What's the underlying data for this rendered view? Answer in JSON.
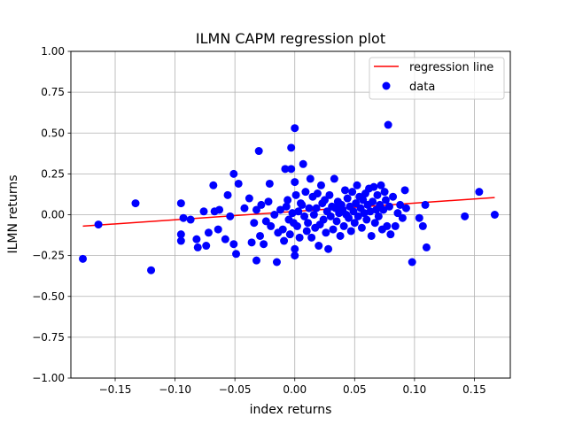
{
  "chart_data": {
    "type": "scatter",
    "title": "ILMN CAPM regression plot",
    "xlabel": "index returns",
    "ylabel": "ILMN returns",
    "xlim": [
      -0.187,
      0.18
    ],
    "ylim": [
      -1.0,
      1.0
    ],
    "grid": true,
    "legend_position": "top-right",
    "xticks": [
      -0.15,
      -0.1,
      -0.05,
      0.0,
      0.05,
      0.1,
      0.15
    ],
    "xtick_labels": [
      "−0.15",
      "−0.10",
      "−0.05",
      "0.00",
      "0.05",
      "0.10",
      "0.15"
    ],
    "yticks": [
      -1.0,
      -0.75,
      -0.5,
      -0.25,
      0.0,
      0.25,
      0.5,
      0.75,
      1.0
    ],
    "ytick_labels": [
      "−1.00",
      "−0.75",
      "−0.50",
      "−0.25",
      "0.00",
      "0.25",
      "0.50",
      "0.75",
      "1.00"
    ],
    "colors": {
      "data": "#0000ff",
      "regression": "#ff0000",
      "grid": "#b0b0b0"
    },
    "legend": [
      {
        "label": "regression line",
        "kind": "line",
        "color": "#ff0000"
      },
      {
        "label": "data",
        "kind": "marker",
        "color": "#0000ff"
      }
    ],
    "regression_line": {
      "x": [
        -0.177,
        0.167
      ],
      "y": [
        -0.07,
        0.105
      ]
    },
    "series": [
      {
        "name": "data",
        "points": [
          [
            -0.177,
            -0.27
          ],
          [
            -0.164,
            -0.06
          ],
          [
            -0.133,
            0.07
          ],
          [
            -0.12,
            -0.34
          ],
          [
            -0.095,
            0.07
          ],
          [
            -0.095,
            -0.12
          ],
          [
            -0.095,
            -0.16
          ],
          [
            -0.093,
            -0.02
          ],
          [
            -0.087,
            -0.03
          ],
          [
            -0.082,
            -0.15
          ],
          [
            -0.081,
            -0.2
          ],
          [
            -0.076,
            0.02
          ],
          [
            -0.074,
            -0.19
          ],
          [
            -0.072,
            -0.11
          ],
          [
            -0.068,
            0.18
          ],
          [
            -0.067,
            0.02
          ],
          [
            -0.064,
            -0.09
          ],
          [
            -0.063,
            0.03
          ],
          [
            -0.058,
            -0.15
          ],
          [
            -0.056,
            0.12
          ],
          [
            -0.054,
            -0.01
          ],
          [
            -0.051,
            -0.18
          ],
          [
            -0.051,
            0.25
          ],
          [
            -0.049,
            -0.24
          ],
          [
            -0.047,
            0.19
          ],
          [
            -0.042,
            0.04
          ],
          [
            -0.038,
            0.1
          ],
          [
            -0.036,
            -0.17
          ],
          [
            -0.034,
            -0.05
          ],
          [
            -0.032,
            -0.28
          ],
          [
            -0.032,
            0.03
          ],
          [
            -0.03,
            0.39
          ],
          [
            -0.029,
            -0.13
          ],
          [
            -0.028,
            0.06
          ],
          [
            -0.026,
            -0.18
          ],
          [
            -0.024,
            -0.04
          ],
          [
            -0.022,
            0.08
          ],
          [
            -0.021,
            0.19
          ],
          [
            -0.02,
            -0.07
          ],
          [
            -0.017,
            0.0
          ],
          [
            -0.015,
            -0.29
          ],
          [
            -0.014,
            -0.11
          ],
          [
            -0.012,
            0.03
          ],
          [
            -0.01,
            -0.09
          ],
          [
            -0.009,
            -0.16
          ],
          [
            -0.008,
            0.28
          ],
          [
            -0.007,
            0.05
          ],
          [
            -0.006,
            0.09
          ],
          [
            -0.005,
            -0.03
          ],
          [
            -0.004,
            -0.12
          ],
          [
            -0.003,
            0.41
          ],
          [
            -0.003,
            0.28
          ],
          [
            -0.002,
            0.01
          ],
          [
            -0.001,
            -0.05
          ],
          [
            0.0,
            0.53
          ],
          [
            0.0,
            0.2
          ],
          [
            0.0,
            -0.21
          ],
          [
            0.0,
            -0.25
          ],
          [
            0.001,
            0.12
          ],
          [
            0.002,
            -0.07
          ],
          [
            0.003,
            0.02
          ],
          [
            0.004,
            -0.14
          ],
          [
            0.005,
            0.07
          ],
          [
            0.006,
            0.06
          ],
          [
            0.007,
            0.31
          ],
          [
            0.008,
            -0.01
          ],
          [
            0.009,
            0.14
          ],
          [
            0.01,
            -0.1
          ],
          [
            0.011,
            -0.05
          ],
          [
            0.012,
            0.04
          ],
          [
            0.013,
            0.22
          ],
          [
            0.014,
            -0.14
          ],
          [
            0.015,
            0.11
          ],
          [
            0.016,
            0.0
          ],
          [
            0.017,
            -0.08
          ],
          [
            0.018,
            0.04
          ],
          [
            0.019,
            0.13
          ],
          [
            0.02,
            -0.19
          ],
          [
            0.021,
            -0.06
          ],
          [
            0.022,
            0.18
          ],
          [
            0.023,
            0.07
          ],
          [
            0.024,
            -0.03
          ],
          [
            0.025,
            0.09
          ],
          [
            0.026,
            -0.11
          ],
          [
            0.027,
            0.02
          ],
          [
            0.028,
            -0.21
          ],
          [
            0.029,
            0.12
          ],
          [
            0.03,
            -0.01
          ],
          [
            0.031,
            0.05
          ],
          [
            0.032,
            -0.09
          ],
          [
            0.033,
            0.22
          ],
          [
            0.034,
            0.04
          ],
          [
            0.035,
            -0.04
          ],
          [
            0.036,
            0.08
          ],
          [
            0.037,
            0.01
          ],
          [
            0.038,
            -0.13
          ],
          [
            0.039,
            0.06
          ],
          [
            0.04,
            0.03
          ],
          [
            0.041,
            -0.07
          ],
          [
            0.042,
            0.15
          ],
          [
            0.043,
            0.0
          ],
          [
            0.044,
            0.1
          ],
          [
            0.045,
            -0.02
          ],
          [
            0.046,
            0.05
          ],
          [
            0.047,
            -0.1
          ],
          [
            0.048,
            0.14
          ],
          [
            0.049,
            0.02
          ],
          [
            0.05,
            -0.05
          ],
          [
            0.051,
            0.07
          ],
          [
            0.052,
            0.18
          ],
          [
            0.053,
            -0.01
          ],
          [
            0.054,
            0.11
          ],
          [
            0.055,
            0.04
          ],
          [
            0.056,
            -0.08
          ],
          [
            0.057,
            0.09
          ],
          [
            0.058,
            0.01
          ],
          [
            0.059,
            0.13
          ],
          [
            0.06,
            -0.03
          ],
          [
            0.061,
            0.06
          ],
          [
            0.062,
            0.16
          ],
          [
            0.063,
            0.02
          ],
          [
            0.064,
            -0.13
          ],
          [
            0.065,
            0.08
          ],
          [
            0.066,
            0.17
          ],
          [
            0.067,
            -0.05
          ],
          [
            0.068,
            0.03
          ],
          [
            0.069,
            0.12
          ],
          [
            0.07,
            -0.01
          ],
          [
            0.071,
            0.06
          ],
          [
            0.072,
            0.18
          ],
          [
            0.073,
            -0.09
          ],
          [
            0.074,
            0.03
          ],
          [
            0.075,
            0.14
          ],
          [
            0.076,
            0.09
          ],
          [
            0.077,
            -0.07
          ],
          [
            0.078,
            0.55
          ],
          [
            0.079,
            0.05
          ],
          [
            0.08,
            -0.12
          ],
          [
            0.082,
            0.11
          ],
          [
            0.084,
            -0.07
          ],
          [
            0.086,
            0.01
          ],
          [
            0.088,
            0.06
          ],
          [
            0.09,
            -0.02
          ],
          [
            0.092,
            0.15
          ],
          [
            0.093,
            0.04
          ],
          [
            0.098,
            -0.29
          ],
          [
            0.104,
            -0.02
          ],
          [
            0.107,
            -0.07
          ],
          [
            0.109,
            0.06
          ],
          [
            0.11,
            -0.2
          ],
          [
            0.142,
            -0.01
          ],
          [
            0.154,
            0.14
          ],
          [
            0.167,
            0.0
          ]
        ]
      }
    ]
  }
}
